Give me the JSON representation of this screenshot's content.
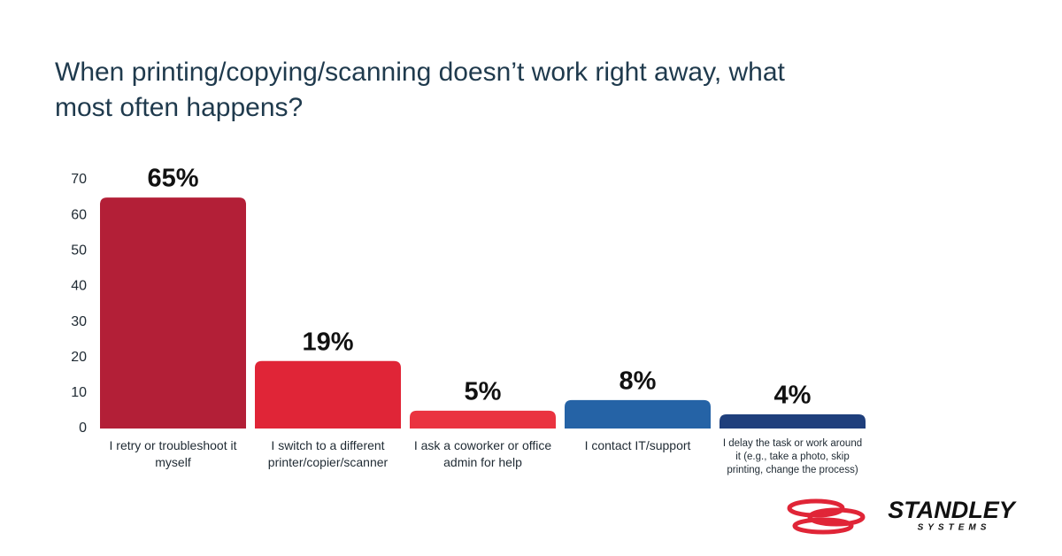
{
  "chart_data": {
    "type": "bar",
    "title": "When printing/copying/scanning doesn’t work right away, what most often happens?",
    "categories": [
      "I retry or troubleshoot it myself",
      "I switch to a different printer/copier/scanner",
      "I ask a coworker or office admin for help",
      "I contact IT/support",
      "I delay the task or work around it (e.g., take a photo, skip printing, change the process)"
    ],
    "values": [
      65,
      19,
      5,
      8,
      4
    ],
    "value_labels": [
      "65%",
      "19%",
      "5%",
      "8%",
      "4%"
    ],
    "colors": [
      "#b31f37",
      "#e02537",
      "#ea3340",
      "#2563a6",
      "#1f3f7c"
    ],
    "ylim": [
      0,
      70
    ],
    "yticks": [
      0,
      10,
      20,
      30,
      40,
      50,
      60,
      70
    ],
    "grid": false
  },
  "logo": {
    "name": "STANDLEY",
    "tagline": "SYSTEMS"
  }
}
